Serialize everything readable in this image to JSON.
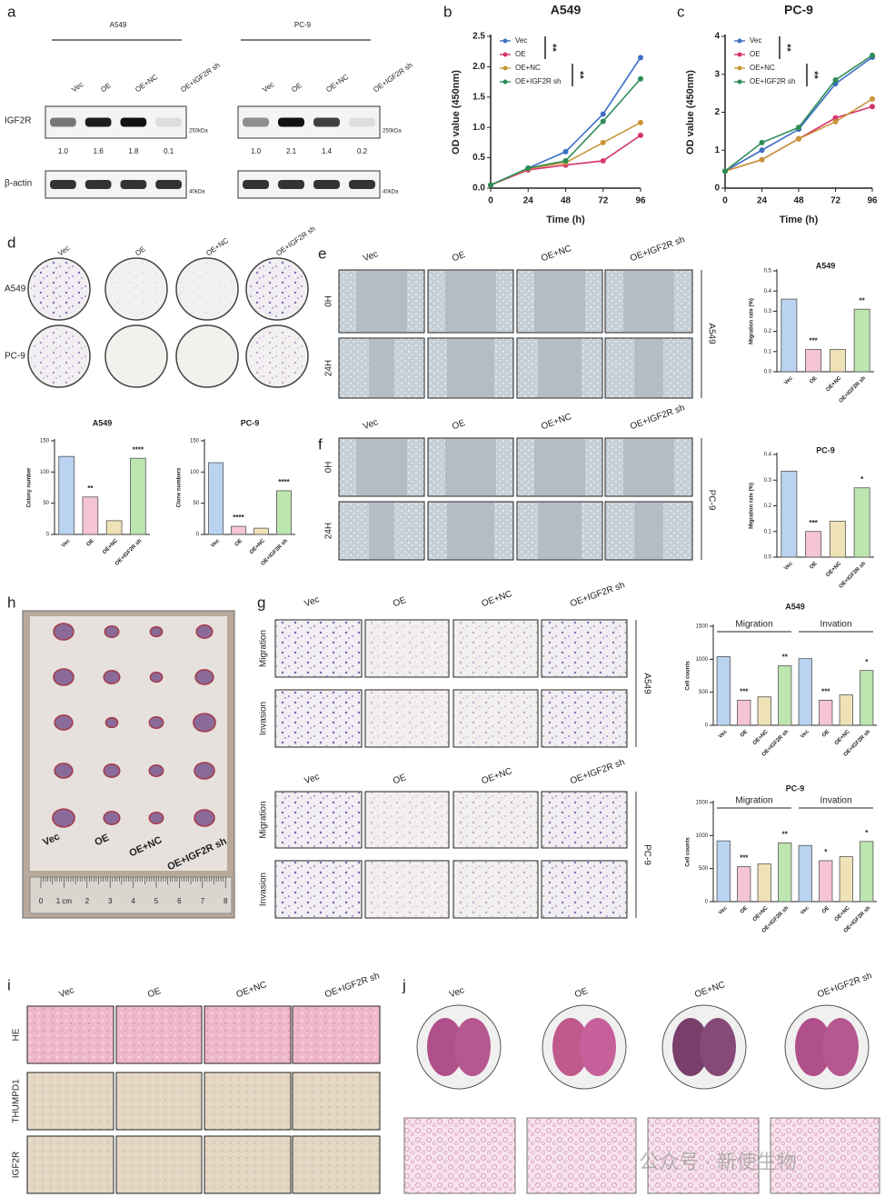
{
  "groups": [
    "Vec",
    "OE",
    "OE+NC",
    "OE+IGF2R sh"
  ],
  "panel_labels": [
    "a",
    "b",
    "c",
    "d",
    "e",
    "f",
    "g",
    "h",
    "i",
    "j"
  ],
  "western_blot": {
    "cell_lines": [
      "A549",
      "PC-9"
    ],
    "rows": [
      "IGF2R",
      "β-actin"
    ],
    "markers": [
      "250kDa",
      "40kDa"
    ],
    "quantification": [
      [
        "1.0",
        "1.6",
        "1.8",
        "0.1"
      ],
      [
        "1.0",
        "2.1",
        "1.4",
        "0.2"
      ]
    ]
  },
  "colony": {
    "rows": [
      "A549",
      "PC-9"
    ]
  },
  "wound_healing": {
    "times": [
      "0H",
      "24H"
    ],
    "cell_lines": [
      "A549",
      "PC-9"
    ]
  },
  "transwell": {
    "rows": [
      "Migration",
      "Invasion"
    ],
    "cell_lines": [
      "A549",
      "PC-9"
    ]
  },
  "xenograft": {
    "ruler": [
      "0",
      "1 cm",
      "2",
      "3",
      "4",
      "5",
      "6",
      "7",
      "8"
    ]
  },
  "ihc": {
    "stains": [
      "HE",
      "THUMPD1",
      "IGF2R"
    ]
  },
  "watermark": "公众号 · 新使生物",
  "chart_data": [
    {
      "type": "line",
      "title": "A549",
      "xlabel": "Time (h)",
      "ylabel": "OD value (450nm)",
      "x": [
        0,
        24,
        48,
        72,
        96
      ],
      "xlim": [
        0,
        96
      ],
      "xticks": [
        0,
        24,
        48,
        72,
        96
      ],
      "ylim": [
        0,
        2.5
      ],
      "yticks": [
        {
          "value": 0,
          "label": "0.0"
        },
        0.5,
        {
          "value": 1,
          "label": "1.0"
        },
        1.5,
        {
          "value": 2,
          "label": "2.0"
        },
        2.5
      ],
      "series": [
        {
          "name": "Vec",
          "color": "#3e6fc4",
          "values": [
            0.05,
            0.33,
            0.6,
            1.22,
            2.15
          ]
        },
        {
          "name": "OE",
          "color": "#d6336c",
          "values": [
            0.05,
            0.3,
            0.38,
            0.45,
            0.87
          ]
        },
        {
          "name": "OE+NC",
          "color": "#c8963a",
          "values": [
            0.05,
            0.32,
            0.42,
            0.75,
            1.08
          ]
        },
        {
          "name": "OE+IGF2R sh",
          "color": "#2e8b57",
          "values": [
            0.05,
            0.33,
            0.45,
            1.1,
            1.8
          ]
        }
      ],
      "annotations": [
        "**",
        "**"
      ]
    },
    {
      "type": "line",
      "title": "PC-9",
      "xlabel": "Time (h)",
      "ylabel": "OD value (450nm)",
      "x": [
        0,
        24,
        48,
        72,
        96
      ],
      "xlim": [
        0,
        96
      ],
      "xticks": [
        0,
        24,
        48,
        72,
        96
      ],
      "ylim": [
        0,
        4
      ],
      "yticks": [
        0,
        1,
        2,
        3,
        4
      ],
      "series": [
        {
          "name": "Vec",
          "color": "#3e6fc4",
          "values": [
            0.45,
            1.0,
            1.55,
            2.75,
            3.45
          ]
        },
        {
          "name": "OE",
          "color": "#d6336c",
          "values": [
            0.45,
            0.75,
            1.3,
            1.85,
            2.15
          ]
        },
        {
          "name": "OE+NC",
          "color": "#c8963a",
          "values": [
            0.45,
            0.75,
            1.3,
            1.75,
            2.35
          ]
        },
        {
          "name": "OE+IGF2R sh",
          "color": "#2e8b57",
          "values": [
            0.45,
            1.2,
            1.6,
            2.85,
            3.5
          ]
        }
      ],
      "annotations": [
        "**",
        "**"
      ]
    },
    {
      "type": "bar",
      "title": "A549",
      "ylabel": "Colony number",
      "categories": [
        "Vec",
        "OE",
        "OE+NC",
        "OE+IGF2R sh"
      ],
      "values": [
        125,
        60,
        22,
        122
      ],
      "colors": [
        "#b9d3f0",
        "#f5c4d5",
        "#efe2b6",
        "#bde5b0"
      ],
      "ylim": [
        0,
        150
      ],
      "yticks": [
        0,
        50,
        100,
        150
      ],
      "annotations": [
        null,
        "**",
        null,
        "****"
      ]
    },
    {
      "type": "bar",
      "title": "PC-9",
      "ylabel": "Clone numbers",
      "categories": [
        "Vec",
        "OE",
        "OE+NC",
        "OE+IGF2R sh"
      ],
      "values": [
        115,
        13,
        10,
        70
      ],
      "colors": [
        "#b9d3f0",
        "#f5c4d5",
        "#efe2b6",
        "#bde5b0"
      ],
      "ylim": [
        0,
        150
      ],
      "yticks": [
        0,
        50,
        100,
        150
      ],
      "annotations": [
        null,
        "****",
        null,
        "****"
      ]
    },
    {
      "type": "bar",
      "title": "A549",
      "ylabel": "Migration rate (%)",
      "categories": [
        "Vec",
        "OE",
        "OE+NC",
        "OE+IGF2R sh"
      ],
      "values": [
        0.36,
        0.11,
        0.11,
        0.31
      ],
      "colors": [
        "#b9d3f0",
        "#f5c4d5",
        "#efe2b6",
        "#bde5b0"
      ],
      "ylim": [
        0,
        0.5
      ],
      "yticks": [
        {
          "value": 0,
          "label": "0.0"
        },
        0.1,
        0.2,
        0.3,
        0.4,
        0.5
      ],
      "annotations": [
        null,
        "***",
        null,
        "**"
      ]
    },
    {
      "type": "bar",
      "title": "PC-9",
      "ylabel": "Migration rate (%)",
      "categories": [
        "Vec",
        "OE",
        "OE+NC",
        "OE+IGF2R sh"
      ],
      "values": [
        0.335,
        0.1,
        0.14,
        0.27
      ],
      "colors": [
        "#b9d3f0",
        "#f5c4d5",
        "#efe2b6",
        "#bde5b0"
      ],
      "ylim": [
        0,
        0.4
      ],
      "yticks": [
        {
          "value": 0,
          "label": "0.0"
        },
        0.1,
        0.2,
        0.3,
        0.4
      ],
      "annotations": [
        null,
        "***",
        null,
        "*"
      ]
    },
    {
      "type": "bar",
      "title": "A549",
      "ylabel": "Cell counts",
      "groups": [
        "Migration",
        "Invation"
      ],
      "categories": [
        "Vec",
        "OE",
        "OE+NC",
        "OE+IGF2R sh",
        "Vec",
        "OE",
        "OE+NC",
        "OE+IGF2R sh"
      ],
      "values": [
        1040,
        380,
        430,
        900,
        1010,
        380,
        460,
        830
      ],
      "colors": [
        "#b9d3f0",
        "#f5c4d5",
        "#efe2b6",
        "#bde5b0",
        "#b9d3f0",
        "#f5c4d5",
        "#efe2b6",
        "#bde5b0"
      ],
      "ylim": [
        0,
        1500
      ],
      "yticks": [
        0,
        500,
        1000,
        1500
      ],
      "annotations": [
        null,
        "***",
        null,
        "**",
        null,
        "***",
        null,
        "*"
      ]
    },
    {
      "type": "bar",
      "title": "PC-9",
      "ylabel": "Cell counts",
      "groups": [
        "Migration",
        "Invation"
      ],
      "categories": [
        "Vec",
        "OE",
        "OE+NC",
        "OE+IGF2R sh",
        "Vec",
        "OE",
        "OE+NC",
        "OE+IGF2R sh"
      ],
      "values": [
        920,
        530,
        570,
        890,
        850,
        620,
        680,
        910
      ],
      "colors": [
        "#b9d3f0",
        "#f5c4d5",
        "#efe2b6",
        "#bde5b0",
        "#b9d3f0",
        "#f5c4d5",
        "#efe2b6",
        "#bde5b0"
      ],
      "ylim": [
        0,
        1500
      ],
      "yticks": [
        0,
        500,
        1000,
        1500
      ],
      "annotations": [
        null,
        "***",
        null,
        "**",
        null,
        "*",
        null,
        "*"
      ]
    }
  ]
}
